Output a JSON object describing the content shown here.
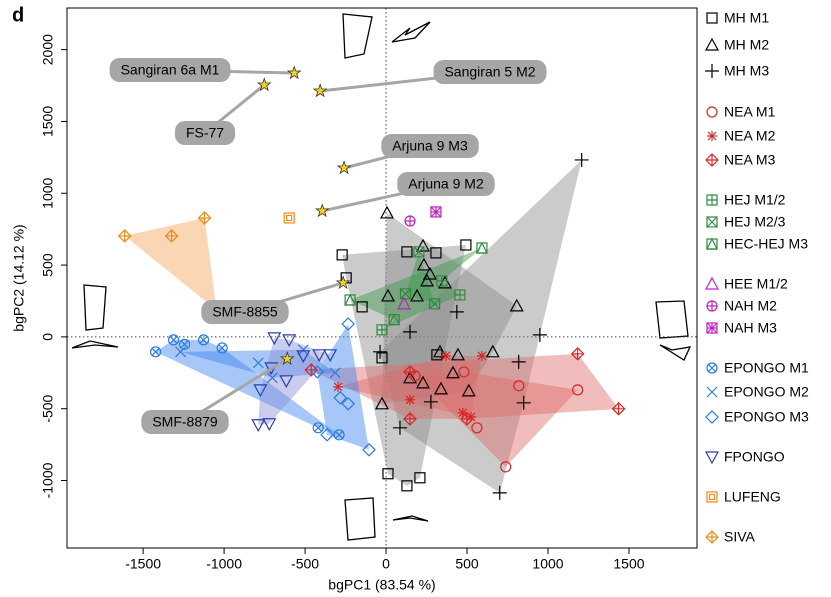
{
  "chart_data": {
    "type": "scatter",
    "title": "d",
    "x_label": "bgPC1 (83.54 %)",
    "y_label": "bgPC2 (14.12 %)",
    "xlim": [
      -1970,
      1920
    ],
    "ylim": [
      -1470,
      2290
    ],
    "xticks": [
      -1500,
      -1000,
      -500,
      0,
      500,
      1000,
      1500
    ],
    "yticks": [
      -1000,
      -500,
      0,
      500,
      1000,
      1500,
      2000
    ],
    "zero_lines": true,
    "legend": "right",
    "series": [
      {
        "name": "MH M1",
        "color": "#000000",
        "marker": "square",
        "hull": "#8c8c8c",
        "x": [
          -271,
          -246,
          129,
          308,
          493,
          -148,
          314,
          -25,
          12,
          129,
          209
        ],
        "values": [
          571,
          411,
          592,
          585,
          640,
          209,
          -125,
          -146,
          -953,
          -1037,
          -981
        ]
      },
      {
        "name": "MH M2",
        "color": "#000000",
        "marker": "triangle",
        "hull": "#8c8c8c",
        "x": [
          6,
          228,
          271,
          234,
          191,
          12,
          807,
          659,
          444,
          333,
          148,
          228,
          339,
          -25,
          413,
          511,
          253,
          364
        ],
        "values": [
          863,
          633,
          438,
          501,
          285,
          285,
          216,
          -104,
          -125,
          -104,
          -285,
          -320,
          -362,
          -466,
          -250,
          -376,
          390,
          376
        ]
      },
      {
        "name": "MH M3",
        "color": "#000000",
        "marker": "plus",
        "hull": "#8c8c8c",
        "x": [
          1208,
          950,
          -37,
          437,
          819,
          850,
          702,
          86,
          148,
          277
        ],
        "values": [
          1232,
          14,
          -104,
          174,
          -174,
          -459,
          -1086,
          -633,
          35,
          -452
        ]
      },
      {
        "name": "NEA M1",
        "color": "#d62728",
        "marker": "circle",
        "hull": "#de6a6a",
        "x": [
          1183,
          739,
          561,
          179,
          481,
          820
        ],
        "values": [
          -369,
          -905,
          -633,
          -271,
          -244,
          -340
        ]
      },
      {
        "name": "NEA M2",
        "color": "#d62728",
        "marker": "asterisk",
        "hull": "#de6a6a",
        "x": [
          -296,
          370,
          148,
          474,
          524,
          592
        ],
        "values": [
          -348,
          -132,
          -438,
          -529,
          -557,
          -132
        ]
      },
      {
        "name": "NEA M3",
        "color": "#d62728",
        "marker": "diamond-plus",
        "hull": "#de6a6a",
        "x": [
          1183,
          1436,
          499,
          -462,
          148,
          148
        ],
        "values": [
          -118,
          -501,
          -571,
          -230,
          -571,
          -244
        ]
      },
      {
        "name": "HEJ M1/2",
        "color": "#2e8b3e",
        "marker": "square-plus",
        "hull": "#3a9a4a",
        "x": [
          456,
          -25,
          345
        ],
        "values": [
          292,
          49,
          390
        ]
      },
      {
        "name": "HEJ M2/3",
        "color": "#2e8b3e",
        "marker": "square-x",
        "hull": "#3a9a4a",
        "x": [
          203,
          120,
          300
        ],
        "values": [
          592,
          300,
          230
        ]
      },
      {
        "name": "HEC-HEJ M3",
        "color": "#2e8b3e",
        "marker": "square-triangle",
        "hull": "#3a9a4a",
        "x": [
          592,
          -222,
          50
        ],
        "values": [
          619,
          257,
          120
        ]
      },
      {
        "name": "HEE M1/2",
        "color": "#c020c0",
        "marker": "triangle",
        "x": [
          111
        ],
        "values": [
          230
        ]
      },
      {
        "name": "NAH M2",
        "color": "#c020c0",
        "marker": "circle-plus",
        "x": [
          148
        ],
        "values": [
          807
        ]
      },
      {
        "name": "NAH M3",
        "color": "#c020c0",
        "marker": "square-asterisk",
        "x": [
          308
        ],
        "values": [
          870
        ]
      },
      {
        "name": "EPONGO M1",
        "color": "#2b7be0",
        "marker": "circle-x",
        "hull": "#3b82f0",
        "x": [
          -1312,
          -1423,
          -1127,
          -1244,
          -290,
          -419,
          -1012
        ],
        "values": [
          -21,
          -104,
          -21,
          -52,
          -682,
          -633,
          -77
        ]
      },
      {
        "name": "EPONGO M2",
        "color": "#2b7be0",
        "marker": "x",
        "hull": "#3b82f0",
        "x": [
          -1269,
          -702,
          -511,
          -789,
          -314
        ],
        "values": [
          -104,
          -285,
          -90,
          -181,
          -250
        ]
      },
      {
        "name": "EPONGO M3",
        "color": "#2b7be0",
        "marker": "diamond",
        "hull": "#3b82f0",
        "x": [
          -234,
          -283,
          -234,
          -105,
          -425,
          -364
        ],
        "values": [
          90,
          -424,
          -466,
          -786,
          -244,
          -682
        ]
      },
      {
        "name": "FPONGO",
        "color": "#2c3fb0",
        "marker": "triangle-down",
        "hull": "#8a8fd8",
        "x": [
          -690,
          -598,
          -511,
          -413,
          -709,
          -776,
          -616,
          -789,
          -721,
          -345
        ],
        "values": [
          -7,
          -21,
          -132,
          -125,
          -216,
          -369,
          -306,
          -612,
          -605,
          -125
        ]
      },
      {
        "name": "LUFENG",
        "color": "#f08a1e",
        "marker": "square-square",
        "x": [
          -598
        ],
        "values": [
          828
        ]
      },
      {
        "name": "SIVA",
        "color": "#f08a1e",
        "marker": "diamond-plus",
        "hull": "#f5a55a",
        "x": [
          -1614,
          -1324,
          -1121,
          -1047
        ],
        "values": [
          703,
          703,
          828,
          188
        ]
      },
      {
        "color": "#f5d020",
        "marker": "star",
        "point_labels": [
          "Sangiran 6a M1",
          "Sangiran 5 M2",
          "FS-77",
          "Arjuna 9 M3",
          "Arjuna 9 M2",
          "SMF-8855",
          "SMF-8879"
        ],
        "x": [
          -567,
          -407,
          -752,
          -259,
          -394,
          -265,
          -610
        ],
        "values": [
          1837,
          1712,
          1754,
          1176,
          877,
          376,
          -153
        ]
      }
    ]
  }
}
